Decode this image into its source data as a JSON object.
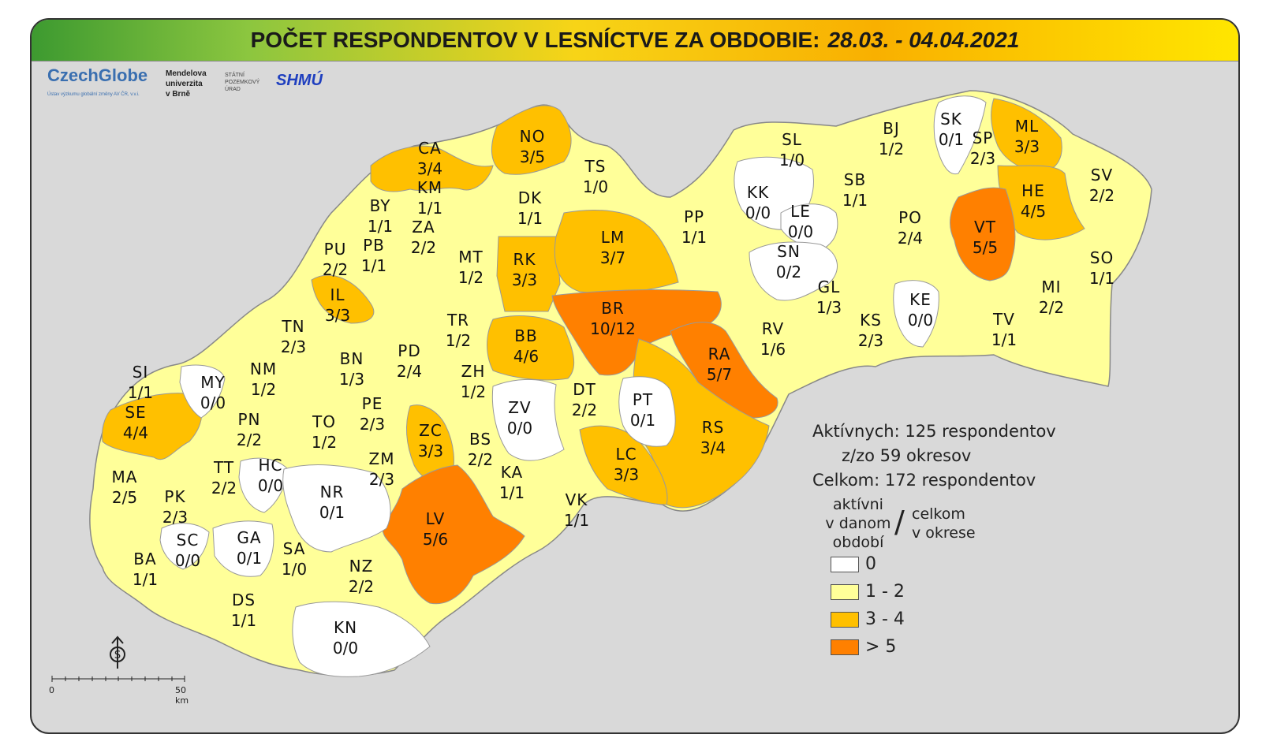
{
  "title": {
    "main": "POČET RESPONDENTOV V LESNÍCTVE ZA OBDOBIE:",
    "dates": "28.03. - 04.04.2021"
  },
  "logos": {
    "czechglobe": "CzechGlobe",
    "czechglobe_sub": "Ústav výzkumu globální změny AV ČR, v.v.i.",
    "mendel": [
      "Mendelova",
      "univerzita",
      "v Brně"
    ],
    "spu": [
      "STÁTNÍ",
      "POZEMKOVÝ",
      "ÚRAD"
    ],
    "shmu": "SHMÚ"
  },
  "colors": {
    "none": "#ffffff",
    "low": "#ffff99",
    "mid": "#ffc000",
    "high": "#ff8000",
    "background": "#d9d9d9"
  },
  "districts": [
    {
      "code": "CA",
      "active": 3,
      "total": 4,
      "label": "3/4"
    },
    {
      "code": "NO",
      "active": 3,
      "total": 5,
      "label": "3/5"
    },
    {
      "code": "TS",
      "active": 1,
      "total": 0,
      "label": "1/0"
    },
    {
      "code": "KM",
      "active": 1,
      "total": 1,
      "label": "1/1"
    },
    {
      "code": "BY",
      "active": 1,
      "total": 1,
      "label": "1/1"
    },
    {
      "code": "ZA",
      "active": 2,
      "total": 2,
      "label": "2/2"
    },
    {
      "code": "DK",
      "active": 1,
      "total": 1,
      "label": "1/1"
    },
    {
      "code": "PU",
      "active": 2,
      "total": 2,
      "label": "2/2"
    },
    {
      "code": "PB",
      "active": 1,
      "total": 1,
      "label": "1/1"
    },
    {
      "code": "MT",
      "active": 1,
      "total": 2,
      "label": "1/2"
    },
    {
      "code": "RK",
      "active": 3,
      "total": 3,
      "label": "3/3"
    },
    {
      "code": "LM",
      "active": 3,
      "total": 7,
      "label": "3/7"
    },
    {
      "code": "IL",
      "active": 3,
      "total": 3,
      "label": "3/3"
    },
    {
      "code": "TN",
      "active": 2,
      "total": 3,
      "label": "2/3"
    },
    {
      "code": "TR",
      "active": 1,
      "total": 2,
      "label": "1/2"
    },
    {
      "code": "BB",
      "active": 4,
      "total": 6,
      "label": "4/6"
    },
    {
      "code": "BR",
      "active": 10,
      "total": 12,
      "label": "10/12"
    },
    {
      "code": "PD",
      "active": 2,
      "total": 4,
      "label": "2/4"
    },
    {
      "code": "BN",
      "active": 1,
      "total": 3,
      "label": "1/3"
    },
    {
      "code": "NM",
      "active": 1,
      "total": 2,
      "label": "1/2"
    },
    {
      "code": "SI",
      "active": 1,
      "total": 1,
      "label": "1/1"
    },
    {
      "code": "MY",
      "active": 0,
      "total": 0,
      "label": "0/0"
    },
    {
      "code": "SE",
      "active": 4,
      "total": 4,
      "label": "4/4"
    },
    {
      "code": "ZH",
      "active": 1,
      "total": 2,
      "label": "1/2"
    },
    {
      "code": "PE",
      "active": 2,
      "total": 3,
      "label": "2/3"
    },
    {
      "code": "PN",
      "active": 2,
      "total": 2,
      "label": "2/2"
    },
    {
      "code": "TO",
      "active": 1,
      "total": 2,
      "label": "1/2"
    },
    {
      "code": "ZC",
      "active": 3,
      "total": 3,
      "label": "3/3"
    },
    {
      "code": "ZV",
      "active": 0,
      "total": 0,
      "label": "0/0"
    },
    {
      "code": "DT",
      "active": 2,
      "total": 2,
      "label": "2/2"
    },
    {
      "code": "PT",
      "active": 0,
      "total": 1,
      "label": "0/1"
    },
    {
      "code": "BS",
      "active": 2,
      "total": 2,
      "label": "2/2"
    },
    {
      "code": "MA",
      "active": 2,
      "total": 5,
      "label": "2/5"
    },
    {
      "code": "TT",
      "active": 2,
      "total": 2,
      "label": "2/2"
    },
    {
      "code": "HC",
      "active": 0,
      "total": 0,
      "label": "0/0"
    },
    {
      "code": "ZM",
      "active": 2,
      "total": 3,
      "label": "2/3"
    },
    {
      "code": "NR",
      "active": 0,
      "total": 1,
      "label": "0/1"
    },
    {
      "code": "KA",
      "active": 1,
      "total": 1,
      "label": "1/1"
    },
    {
      "code": "LC",
      "active": 3,
      "total": 3,
      "label": "3/3"
    },
    {
      "code": "PK",
      "active": 2,
      "total": 3,
      "label": "2/3"
    },
    {
      "code": "LV",
      "active": 5,
      "total": 6,
      "label": "5/6"
    },
    {
      "code": "VK",
      "active": 1,
      "total": 1,
      "label": "1/1"
    },
    {
      "code": "SC",
      "active": 0,
      "total": 0,
      "label": "0/0"
    },
    {
      "code": "GA",
      "active": 0,
      "total": 1,
      "label": "0/1"
    },
    {
      "code": "SA",
      "active": 1,
      "total": 0,
      "label": "1/0"
    },
    {
      "code": "BA",
      "active": 1,
      "total": 1,
      "label": "1/1"
    },
    {
      "code": "NZ",
      "active": 2,
      "total": 2,
      "label": "2/2"
    },
    {
      "code": "DS",
      "active": 1,
      "total": 1,
      "label": "1/1"
    },
    {
      "code": "KN",
      "active": 0,
      "total": 0,
      "label": "0/0"
    },
    {
      "code": "RA",
      "active": 5,
      "total": 7,
      "label": "5/7"
    },
    {
      "code": "RS",
      "active": 3,
      "total": 4,
      "label": "3/4"
    },
    {
      "code": "RV",
      "active": 1,
      "total": 6,
      "label": "1/6"
    },
    {
      "code": "PP",
      "active": 1,
      "total": 1,
      "label": "1/1"
    },
    {
      "code": "KK",
      "active": 0,
      "total": 0,
      "label": "0/0"
    },
    {
      "code": "LE",
      "active": 0,
      "total": 0,
      "label": "0/0"
    },
    {
      "code": "SN",
      "active": 0,
      "total": 2,
      "label": "0/2"
    },
    {
      "code": "SL",
      "active": 1,
      "total": 0,
      "label": "1/0"
    },
    {
      "code": "SB",
      "active": 1,
      "total": 1,
      "label": "1/1"
    },
    {
      "code": "GL",
      "active": 1,
      "total": 3,
      "label": "1/3"
    },
    {
      "code": "KS",
      "active": 2,
      "total": 3,
      "label": "2/3"
    },
    {
      "code": "KE",
      "active": 0,
      "total": 0,
      "label": "0/0"
    },
    {
      "code": "BJ",
      "active": 1,
      "total": 2,
      "label": "1/2"
    },
    {
      "code": "SK",
      "active": 0,
      "total": 1,
      "label": "0/1"
    },
    {
      "code": "SP",
      "active": 2,
      "total": 3,
      "label": "2/3"
    },
    {
      "code": "ML",
      "active": 3,
      "total": 3,
      "label": "3/3"
    },
    {
      "code": "HE",
      "active": 4,
      "total": 5,
      "label": "4/5"
    },
    {
      "code": "PO",
      "active": 2,
      "total": 4,
      "label": "2/4"
    },
    {
      "code": "VT",
      "active": 5,
      "total": 5,
      "label": "5/5"
    },
    {
      "code": "SV",
      "active": 2,
      "total": 2,
      "label": "2/2"
    },
    {
      "code": "SO",
      "active": 1,
      "total": 1,
      "label": "1/1"
    },
    {
      "code": "MI",
      "active": 2,
      "total": 2,
      "label": "2/2"
    },
    {
      "code": "TV",
      "active": 1,
      "total": 1,
      "label": "1/1"
    }
  ],
  "stats": {
    "line1": "Aktívnych: 125 respondentov",
    "line2": "z/zo 59 okresov",
    "line3": "Celkom: 172 respondentov"
  },
  "legend": {
    "left_label": [
      "aktívni",
      "v danom",
      "období"
    ],
    "slash": "/",
    "right_label": [
      "celkom",
      "v okrese"
    ],
    "items": [
      {
        "label": "0",
        "color": "#ffffff"
      },
      {
        "label": "1 - 2",
        "color": "#ffff99"
      },
      {
        "label": "3 - 4",
        "color": "#ffc000"
      },
      {
        "label": "> 5",
        "color": "#ff8000"
      }
    ]
  },
  "scale": {
    "start": "0",
    "end": "50 km"
  }
}
